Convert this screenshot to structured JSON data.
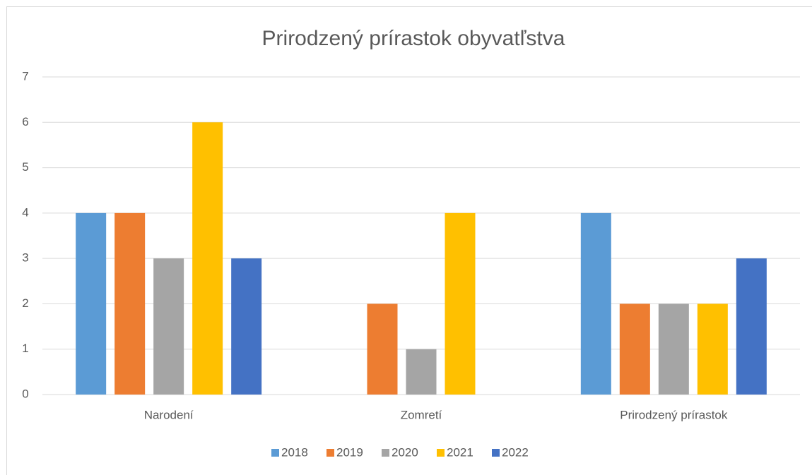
{
  "chart_data": {
    "type": "bar",
    "title": "Prirodzený prírastok obyvatľstva",
    "categories": [
      "Narodení",
      "Zomretí",
      "Prirodzený prírastok"
    ],
    "series": [
      {
        "name": "2018",
        "color": "#5b9bd5",
        "values": [
          4,
          null,
          4
        ]
      },
      {
        "name": "2019",
        "color": "#ed7d31",
        "values": [
          4,
          2,
          2
        ]
      },
      {
        "name": "2020",
        "color": "#a5a5a5",
        "values": [
          3,
          1,
          2
        ]
      },
      {
        "name": "2021",
        "color": "#ffc000",
        "values": [
          6,
          4,
          2
        ]
      },
      {
        "name": "2022",
        "color": "#4472c4",
        "values": [
          3,
          null,
          3
        ]
      }
    ],
    "ylim": [
      0,
      7
    ],
    "yticks": [
      0,
      1,
      2,
      3,
      4,
      5,
      6,
      7
    ],
    "grid": true,
    "legend": "bottom"
  }
}
